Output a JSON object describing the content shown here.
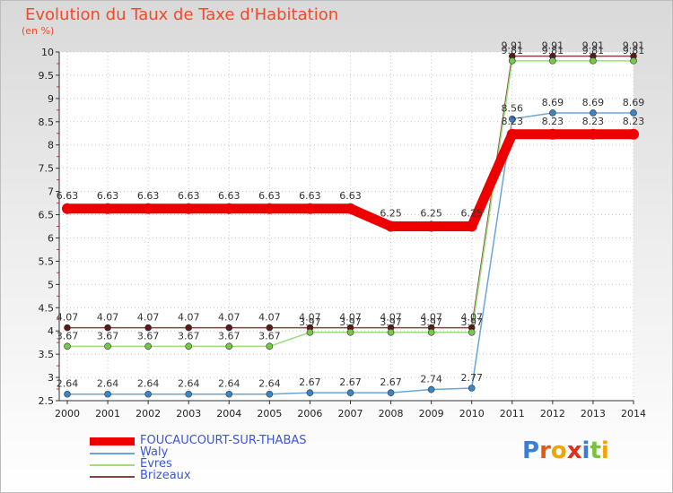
{
  "header": {
    "title": "Evolution du Taux de Taxe d'Habitation",
    "unit": "(en %)"
  },
  "logo": {
    "text": "Proxiti"
  },
  "chart_data": {
    "type": "line",
    "title": "Evolution du Taux de Taxe d'Habitation",
    "ylabel": "(en %)",
    "ylim": [
      2.5,
      10
    ],
    "yticks": [
      "2.5",
      "3",
      "3.5",
      "4",
      "4.5",
      "5",
      "5.5",
      "6",
      "6.5",
      "7",
      "7.5",
      "8",
      "8.5",
      "9",
      "9.5",
      "10"
    ],
    "x": [
      "2000",
      "2001",
      "2002",
      "2003",
      "2004",
      "2005",
      "2006",
      "2007",
      "2008",
      "2009",
      "2010",
      "2011",
      "2012",
      "2013",
      "2014"
    ],
    "grid": "horizontal",
    "legend_position": "bottom-left",
    "series": [
      {
        "name": "FOUCAUCOURT-SUR-THABAS",
        "color": "#ee0000",
        "values": [
          6.63,
          6.63,
          6.63,
          6.63,
          6.63,
          6.63,
          6.63,
          6.63,
          6.25,
          6.25,
          6.25,
          8.23,
          8.23,
          8.23,
          8.23
        ],
        "labels": [
          "6.63",
          "6.63",
          "6.63",
          "6.63",
          "6.63",
          "6.63",
          "6.63",
          "6.63",
          "6.25",
          "6.25",
          "6.25",
          "8.23",
          "8.23",
          "8.23",
          "8.23"
        ]
      },
      {
        "name": "Waly",
        "color": "#6aa5d8",
        "marker": "#3b84c6",
        "values": [
          2.64,
          2.64,
          2.64,
          2.64,
          2.64,
          2.64,
          2.67,
          2.67,
          2.67,
          2.74,
          2.77,
          8.56,
          8.69,
          8.69,
          8.69
        ],
        "labels": [
          "2.64",
          "2.64",
          "2.64",
          "2.64",
          "2.64",
          "2.64",
          "2.67",
          "2.67",
          "2.67",
          "2.74",
          "2.77",
          "8.56",
          "8.69",
          "8.69",
          "8.69"
        ]
      },
      {
        "name": "Èvres",
        "color": "#99e07a",
        "marker": "#77c84a",
        "values": [
          3.67,
          3.67,
          3.67,
          3.67,
          3.67,
          3.67,
          3.97,
          3.97,
          3.97,
          3.97,
          3.97,
          9.81,
          9.81,
          9.81,
          9.81
        ],
        "labels": [
          "3.67",
          "3.67",
          "3.67",
          "3.67",
          "3.67",
          "3.67",
          "3.97",
          "3.97",
          "3.97",
          "3.97",
          "3.97",
          "9.81",
          "9.81",
          "9.81",
          "9.81"
        ]
      },
      {
        "name": "Brizeaux",
        "color": "#8a4040",
        "marker": "#5a1a1a",
        "values": [
          4.07,
          4.07,
          4.07,
          4.07,
          4.07,
          4.07,
          4.07,
          4.07,
          4.07,
          4.07,
          4.07,
          9.91,
          9.91,
          9.91,
          9.91
        ],
        "labels": [
          "4.07",
          "4.07",
          "4.07",
          "4.07",
          "4.07",
          "4.07",
          "4.07",
          "4.07",
          "4.07",
          "4.07",
          "4.07",
          "9.91",
          "9.91",
          "9.91",
          "9.91"
        ]
      }
    ]
  }
}
